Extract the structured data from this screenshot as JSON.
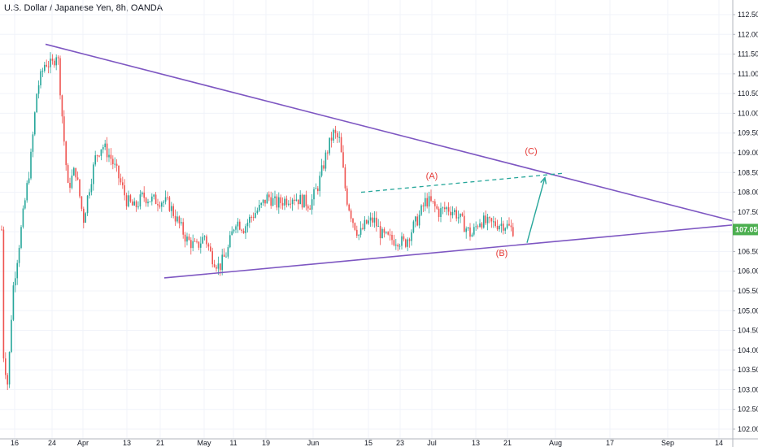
{
  "title": "U.S. Dollar / Japanese Yen, 8h, OANDA",
  "current_price": "107.056",
  "colors": {
    "up": "#26a69a",
    "up_fill": "#4caf50",
    "down": "#ef5350",
    "trend": "#7e57c2",
    "projection": "#26a69a",
    "wave_label": "#e53935",
    "grid": "#f0f3fa",
    "price_tag": "#4caf50"
  },
  "chart_data": {
    "type": "candlestick",
    "y_axis": {
      "min": 102.0,
      "max": 112.5,
      "ticks": [
        "112.500",
        "112.000",
        "111.500",
        "111.000",
        "110.500",
        "110.000",
        "109.500",
        "109.000",
        "108.500",
        "108.000",
        "107.500",
        "107.000",
        "106.500",
        "106.000",
        "105.500",
        "105.000",
        "104.500",
        "104.000",
        "103.500",
        "103.000",
        "102.500",
        "102.000"
      ],
      "tick_values": [
        112.5,
        112.0,
        111.5,
        111.0,
        110.5,
        110.0,
        109.5,
        109.0,
        108.5,
        108.0,
        107.5,
        107.0,
        106.5,
        106.0,
        105.5,
        105.0,
        104.5,
        104.0,
        103.5,
        103.0,
        102.5,
        102.0
      ]
    },
    "x_axis": {
      "ticks": [
        "16",
        "24",
        "Apr",
        "13",
        "21",
        "May",
        "11",
        "19",
        "Jun",
        "15",
        "23",
        "Jul",
        "13",
        "21",
        "Aug",
        "17",
        "Sep",
        "14"
      ]
    },
    "price_path": [
      [
        "16",
        104.0
      ],
      [
        "24",
        111.5
      ],
      [
        "Apr",
        108.5
      ],
      [
        "13",
        109.0
      ],
      [
        "21",
        107.8
      ],
      [
        "May",
        106.6
      ],
      [
        "11",
        106.5
      ],
      [
        "19",
        107.6
      ],
      [
        "Jun",
        108.0
      ],
      [
        "Jun",
        109.8
      ],
      [
        "15",
        106.9
      ],
      [
        "23",
        106.8
      ],
      [
        "Jul",
        107.7
      ],
      [
        "13",
        107.1
      ],
      [
        "21",
        107.056
      ]
    ],
    "trendlines": [
      {
        "name": "upper",
        "from": [
          "24",
          111.75
        ],
        "to": [
          "14",
          107.3
        ]
      },
      {
        "name": "lower",
        "from": [
          "21",
          105.85
        ],
        "to": [
          "14",
          107.3
        ]
      }
    ],
    "projection_line": {
      "from": [
        "Jun",
        108.0
      ],
      "to": [
        "Aug",
        108.5
      ]
    },
    "projection_arrow": {
      "from": [
        "21",
        106.8
      ],
      "to": [
        "Aug",
        108.4
      ]
    },
    "wave_labels": [
      {
        "text": "(A)",
        "x": "Jul",
        "y": 108.4
      },
      {
        "text": "(B)",
        "x": "21",
        "y": 106.5
      },
      {
        "text": "(C)",
        "x": "Aug",
        "y": 109.0
      }
    ]
  }
}
